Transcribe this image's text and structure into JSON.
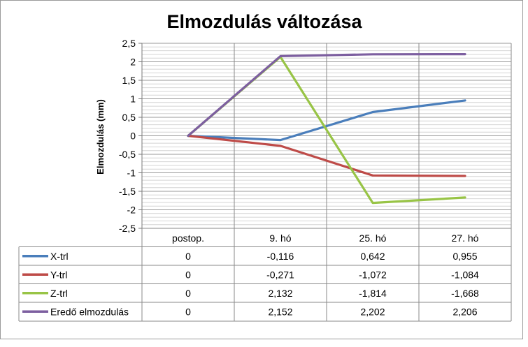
{
  "chart_data": {
    "type": "line",
    "title": "Elmozdulás változása",
    "xlabel": "",
    "ylabel": "Elmozdulás (mm)",
    "ylim": [
      -2.5,
      2.5
    ],
    "y_ticks": [
      "2,5",
      "2",
      "1,5",
      "1",
      "0,5",
      "0",
      "-0,5",
      "-1",
      "-1,5",
      "-2",
      "-2,5"
    ],
    "y_tick_values": [
      2.5,
      2,
      1.5,
      1,
      0.5,
      0,
      -0.5,
      -1,
      -1.5,
      -2,
      -2.5
    ],
    "categories": [
      "postop.",
      "9. hó",
      "25. hó",
      "27. hó"
    ],
    "grid": true,
    "legend": "data-table",
    "series": [
      {
        "name": "X-trl",
        "color": "#4a7ebb",
        "values": [
          0,
          -0.116,
          0.642,
          0.955
        ],
        "labels": [
          "0",
          "-0,116",
          "0,642",
          "0,955"
        ]
      },
      {
        "name": "Y-trl",
        "color": "#be4b48",
        "values": [
          0,
          -0.271,
          -1.072,
          -1.084
        ],
        "labels": [
          "0",
          "-0,271",
          "-1,072",
          "-1,084"
        ]
      },
      {
        "name": "Z-trl",
        "color": "#98c446",
        "values": [
          0,
          2.132,
          -1.814,
          -1.668
        ],
        "labels": [
          "0",
          "2,132",
          "-1,814",
          "-1,668"
        ]
      },
      {
        "name": "Eredő elmozdulás",
        "color": "#7d5fa0",
        "values": [
          0,
          2.152,
          2.202,
          2.206
        ],
        "labels": [
          "0",
          "2,152",
          "2,202",
          "2,206"
        ]
      }
    ]
  }
}
